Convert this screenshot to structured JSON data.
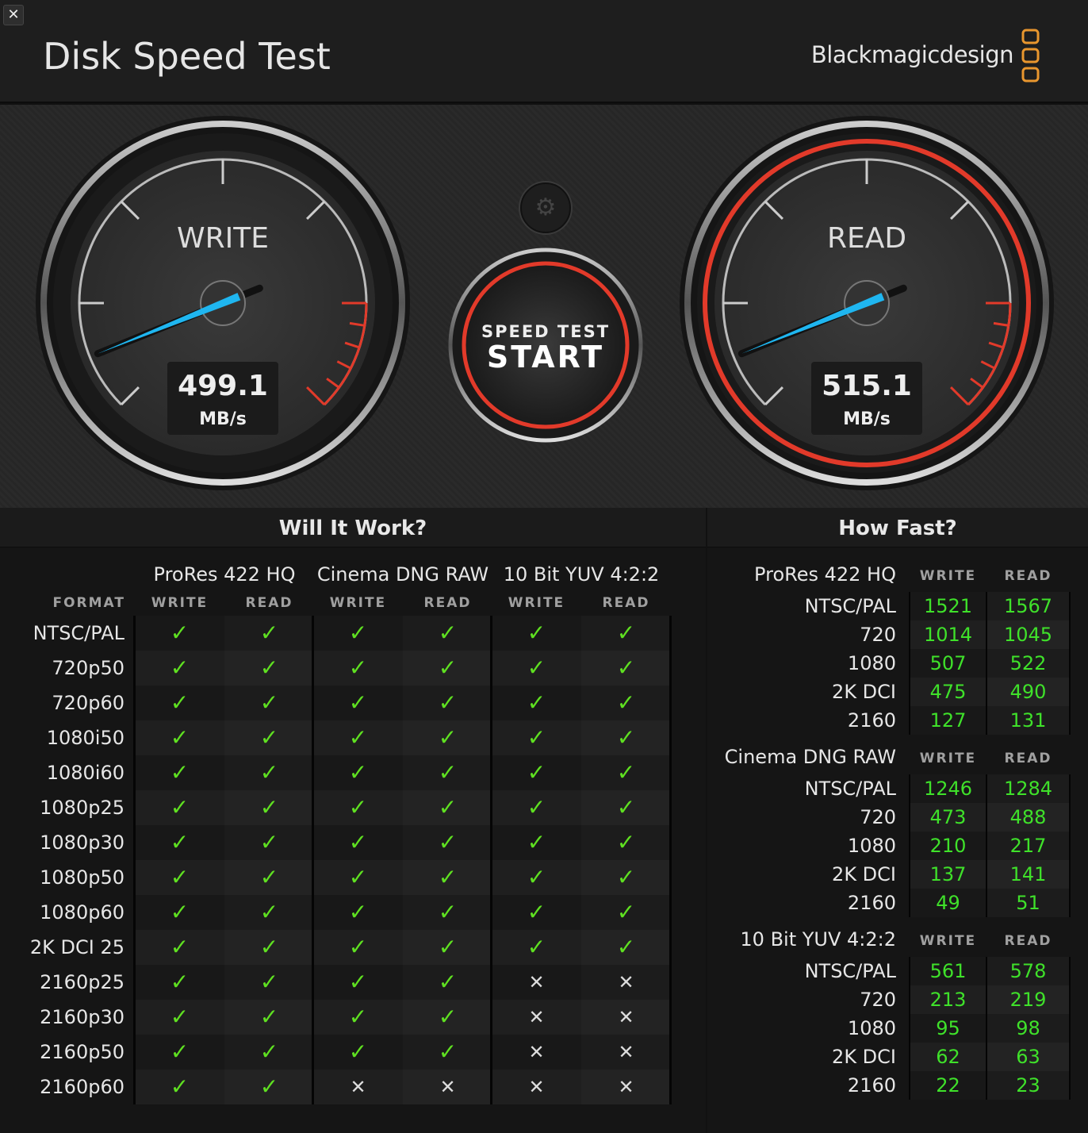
{
  "app": {
    "title": "Disk Speed Test",
    "brand": "Blackmagicdesign",
    "close_icon": "close-icon"
  },
  "colors": {
    "needle": "#1fb6f0",
    "accent_red": "#e23a2a",
    "check": "#5fe021",
    "number": "#3fe12a",
    "brand_orange": "#e8962e"
  },
  "gauges": {
    "write": {
      "label": "WRITE",
      "value": "499.1",
      "unit": "MB/s",
      "active": false
    },
    "read": {
      "label": "READ",
      "value": "515.1",
      "unit": "MB/s",
      "active": true
    }
  },
  "start_button": {
    "line1": "SPEED TEST",
    "line2": "START"
  },
  "settings": {
    "icon": "gear-icon"
  },
  "will_it_work": {
    "title": "Will It Work?",
    "format_label": "FORMAT",
    "groups": [
      "ProRes 422 HQ",
      "Cinema DNG RAW",
      "10 Bit YUV 4:2:2"
    ],
    "sub": [
      "WRITE",
      "READ"
    ],
    "rows": [
      {
        "f": "NTSC/PAL",
        "v": [
          true,
          true,
          true,
          true,
          true,
          true
        ]
      },
      {
        "f": "720p50",
        "v": [
          true,
          true,
          true,
          true,
          true,
          true
        ]
      },
      {
        "f": "720p60",
        "v": [
          true,
          true,
          true,
          true,
          true,
          true
        ]
      },
      {
        "f": "1080i50",
        "v": [
          true,
          true,
          true,
          true,
          true,
          true
        ]
      },
      {
        "f": "1080i60",
        "v": [
          true,
          true,
          true,
          true,
          true,
          true
        ]
      },
      {
        "f": "1080p25",
        "v": [
          true,
          true,
          true,
          true,
          true,
          true
        ]
      },
      {
        "f": "1080p30",
        "v": [
          true,
          true,
          true,
          true,
          true,
          true
        ]
      },
      {
        "f": "1080p50",
        "v": [
          true,
          true,
          true,
          true,
          true,
          true
        ]
      },
      {
        "f": "1080p60",
        "v": [
          true,
          true,
          true,
          true,
          true,
          true
        ]
      },
      {
        "f": "2K DCI 25",
        "v": [
          true,
          true,
          true,
          true,
          true,
          true
        ]
      },
      {
        "f": "2160p25",
        "v": [
          true,
          true,
          true,
          true,
          false,
          false
        ]
      },
      {
        "f": "2160p30",
        "v": [
          true,
          true,
          true,
          true,
          false,
          false
        ]
      },
      {
        "f": "2160p50",
        "v": [
          true,
          true,
          true,
          true,
          false,
          false
        ]
      },
      {
        "f": "2160p60",
        "v": [
          true,
          true,
          false,
          false,
          false,
          false
        ]
      }
    ],
    "check_glyph": "✓",
    "cross_glyph": "✕"
  },
  "how_fast": {
    "title": "How Fast?",
    "write_label": "WRITE",
    "read_label": "READ",
    "sections": [
      {
        "name": "ProRes 422 HQ",
        "rows": [
          [
            "NTSC/PAL",
            "1521",
            "1567"
          ],
          [
            "720",
            "1014",
            "1045"
          ],
          [
            "1080",
            "507",
            "522"
          ],
          [
            "2K DCI",
            "475",
            "490"
          ],
          [
            "2160",
            "127",
            "131"
          ]
        ]
      },
      {
        "name": "Cinema DNG RAW",
        "rows": [
          [
            "NTSC/PAL",
            "1246",
            "1284"
          ],
          [
            "720",
            "473",
            "488"
          ],
          [
            "1080",
            "210",
            "217"
          ],
          [
            "2K DCI",
            "137",
            "141"
          ],
          [
            "2160",
            "49",
            "51"
          ]
        ]
      },
      {
        "name": "10 Bit YUV 4:2:2",
        "rows": [
          [
            "NTSC/PAL",
            "561",
            "578"
          ],
          [
            "720",
            "213",
            "219"
          ],
          [
            "1080",
            "95",
            "98"
          ],
          [
            "2K DCI",
            "62",
            "63"
          ],
          [
            "2160",
            "22",
            "23"
          ]
        ]
      }
    ]
  }
}
